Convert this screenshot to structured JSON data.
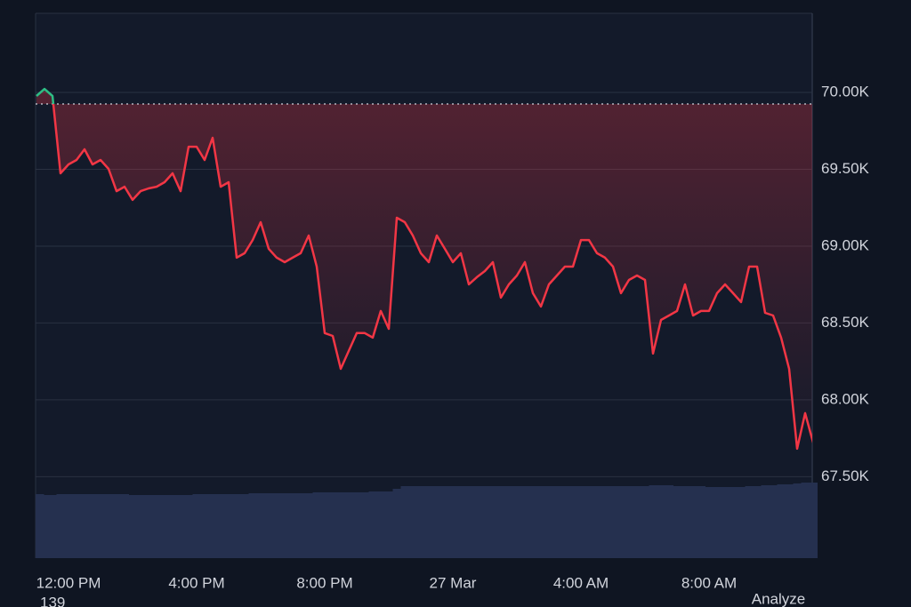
{
  "chart_data": {
    "type": "line",
    "categories": [
      null,
      null,
      null,
      null,
      "12:00 PM",
      null,
      null,
      null,
      null,
      null,
      null,
      null,
      null,
      null,
      null,
      null,
      null,
      null,
      null,
      null,
      "4:00 PM",
      null,
      null,
      null,
      null,
      null,
      null,
      null,
      null,
      null,
      null,
      null,
      null,
      null,
      null,
      null,
      "8:00 PM",
      null,
      null,
      null,
      null,
      null,
      null,
      null,
      null,
      null,
      null,
      null,
      null,
      null,
      null,
      null,
      "27 Mar",
      null,
      null,
      null,
      null,
      null,
      null,
      null,
      null,
      null,
      null,
      null,
      null,
      null,
      null,
      null,
      "4:00 AM",
      null,
      null,
      null,
      null,
      null,
      null,
      null,
      null,
      null,
      null,
      null,
      null,
      null,
      null,
      null,
      "8:00 AM",
      null,
      null,
      null,
      null,
      null,
      null,
      null,
      null,
      null,
      null,
      null,
      null,
      null
    ],
    "series": [
      {
        "color": "#f23645",
        "values": [
          69977,
          70023,
          69977,
          69474,
          69532,
          69561,
          69630,
          69532,
          69561,
          69503,
          69358,
          69387,
          69301,
          69358,
          69376,
          69387,
          69416,
          69474,
          69358,
          69647,
          69647,
          69561,
          69705,
          69387,
          69416,
          68925,
          68954,
          69040,
          69156,
          68983,
          68925,
          68896,
          68925,
          68954,
          69069,
          68867,
          68434,
          68416,
          68202,
          68318,
          68434,
          68434,
          68405,
          68578,
          68462,
          69185,
          69156,
          69069,
          68954,
          68896,
          69069,
          68983,
          68896,
          68954,
          68751,
          68798,
          68838,
          68896,
          68665,
          68751,
          68809,
          68896,
          68694,
          68607,
          68751,
          68809,
          68867,
          68867,
          69040,
          69040,
          68954,
          68925,
          68867,
          68694,
          68780,
          68809,
          68780,
          68301,
          68520,
          68549,
          68578,
          68751,
          68549,
          68578,
          68578,
          68694,
          68751,
          68694,
          68636,
          68867,
          68867,
          68566,
          68549,
          68405,
          68202,
          67682,
          67913,
          67722
        ]
      }
    ],
    "baseline": 69925,
    "baseline_color": "#d1d4dc",
    "color_above": "#2ebd85",
    "volume": {
      "color": "#25304f",
      "values": [
        72,
        71,
        71,
        72,
        72,
        72,
        72,
        72,
        72,
        72,
        72,
        72,
        71,
        71,
        71,
        71,
        71,
        71,
        71,
        71,
        72,
        72,
        72,
        72,
        72,
        72,
        72,
        73,
        73,
        73,
        73,
        73,
        73,
        73,
        73,
        74,
        74,
        74,
        74,
        74,
        74,
        74,
        75,
        75,
        75,
        78,
        81,
        81,
        81,
        81,
        81,
        81,
        81,
        81,
        81,
        81,
        81,
        81,
        81,
        81,
        81,
        81,
        81,
        81,
        81,
        81,
        81,
        81,
        81,
        81,
        81,
        81,
        81,
        81,
        81,
        81,
        81,
        82,
        82,
        82,
        81,
        81,
        81,
        81,
        80,
        80,
        80,
        80,
        80,
        81,
        81,
        82,
        82,
        83,
        83,
        84,
        85,
        85
      ]
    },
    "ylim": [
      66970,
      70515
    ],
    "yticks": [
      {
        "value": 67500,
        "label": "67.50K"
      },
      {
        "value": 68000,
        "label": "68.00K"
      },
      {
        "value": 68500,
        "label": "68.50K"
      },
      {
        "value": 69000,
        "label": "69.00K"
      },
      {
        "value": 69500,
        "label": "69.50K"
      },
      {
        "value": 70000,
        "label": "70.00K"
      }
    ],
    "grid": true,
    "footer_left": "139",
    "button": "Analyze"
  }
}
